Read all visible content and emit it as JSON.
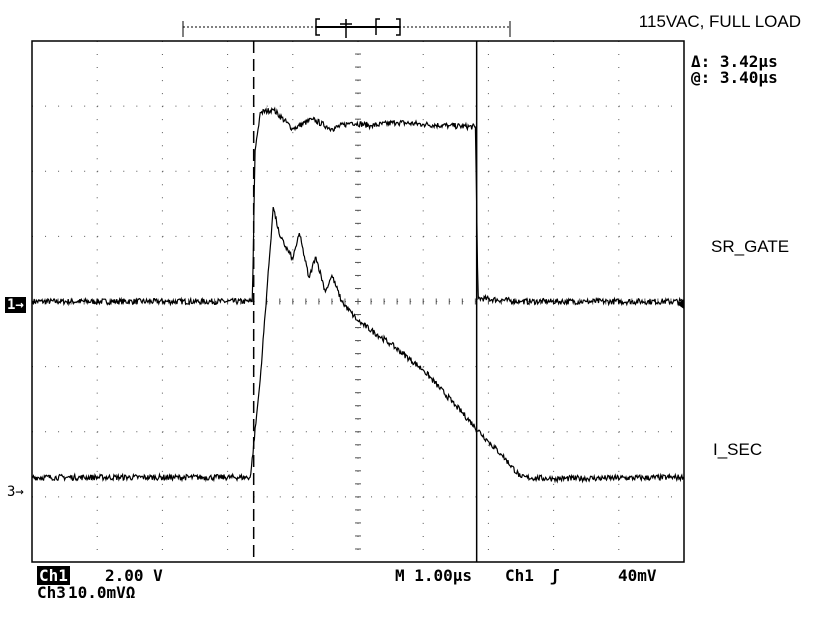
{
  "title": "115VAC, FULL LOAD",
  "cursors": {
    "delta": "Δ: 3.42µs",
    "at": "@: 3.40µs"
  },
  "trace_labels": {
    "ch1": "SR_GATE",
    "ch3": "I_SEC"
  },
  "markers": {
    "ch1": "1→",
    "ch3": "3→"
  },
  "status": {
    "ch1_name": "Ch1",
    "ch1_scale": "2.00 V",
    "ch3_name": "Ch3",
    "ch3_scale": "10.0mVΩ",
    "timebase": "M 1.00µs",
    "trigger_source": "Ch1",
    "trigger_slope": "ʃ",
    "trigger_level": "40mV"
  },
  "chart_data": {
    "type": "line",
    "x_unit": "µs",
    "xlim": [
      0,
      10
    ],
    "ylim": [
      -4,
      4
    ],
    "grid": true,
    "cursor_x": [
      3.4,
      6.82
    ],
    "series": [
      {
        "name": "SR_GATE",
        "x": [
          0,
          3.38,
          3.42,
          3.5,
          3.7,
          4.0,
          4.3,
          4.6,
          4.9,
          5.2,
          5.6,
          6.0,
          6.4,
          6.8,
          6.82,
          6.84,
          7.5,
          8.5,
          10
        ],
        "y": [
          0,
          0,
          2.3,
          2.9,
          2.95,
          2.65,
          2.8,
          2.65,
          2.75,
          2.7,
          2.75,
          2.72,
          2.7,
          2.68,
          1.5,
          0.05,
          0,
          0,
          0
        ]
      },
      {
        "name": "I_SEC",
        "x": [
          0,
          3.35,
          3.5,
          3.7,
          3.8,
          4.0,
          4.1,
          4.25,
          4.35,
          4.5,
          4.6,
          4.75,
          5.0,
          5.5,
          6.0,
          6.5,
          7.0,
          7.2,
          7.5,
          8.0,
          10
        ],
        "y": [
          -2.7,
          -2.7,
          -1.2,
          1.45,
          1.0,
          0.65,
          1.05,
          0.35,
          0.7,
          0.15,
          0.4,
          0.0,
          -0.3,
          -0.65,
          -1.05,
          -1.6,
          -2.15,
          -2.35,
          -2.7,
          -2.72,
          -2.7
        ]
      }
    ]
  }
}
